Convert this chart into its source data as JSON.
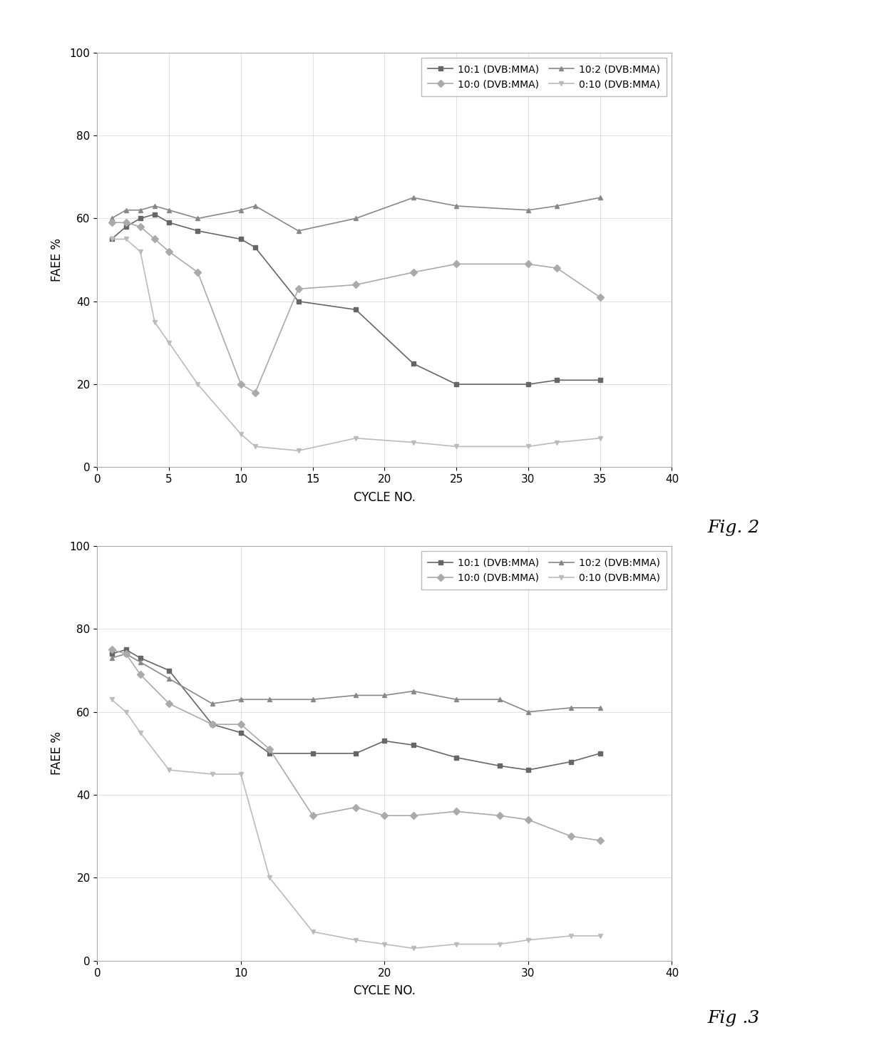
{
  "fig2": {
    "series": [
      {
        "label": "10:1 (DVB:MMA)",
        "x": [
          1,
          2,
          3,
          4,
          5,
          7,
          10,
          11,
          14,
          18,
          22,
          25,
          30,
          32,
          35
        ],
        "y": [
          55,
          58,
          60,
          61,
          59,
          57,
          55,
          53,
          40,
          38,
          25,
          20,
          20,
          21,
          21
        ],
        "color": "#666666",
        "marker": "s",
        "linestyle": "-"
      },
      {
        "label": "10:2 (DVB:MMA)",
        "x": [
          1,
          2,
          3,
          4,
          5,
          7,
          10,
          11,
          14,
          18,
          22,
          25,
          30,
          32,
          35
        ],
        "y": [
          60,
          62,
          62,
          63,
          62,
          60,
          62,
          63,
          57,
          60,
          65,
          63,
          62,
          63,
          65
        ],
        "color": "#888888",
        "marker": "^",
        "linestyle": "-"
      },
      {
        "label": "10:0 (DVB:MMA)",
        "x": [
          1,
          2,
          3,
          4,
          5,
          7,
          10,
          11,
          14,
          18,
          22,
          25,
          30,
          32,
          35
        ],
        "y": [
          59,
          59,
          58,
          55,
          52,
          47,
          20,
          18,
          43,
          44,
          47,
          49,
          49,
          48,
          41
        ],
        "color": "#aaaaaa",
        "marker": "D",
        "linestyle": "-"
      },
      {
        "label": "0:10 (DVB:MMA)",
        "x": [
          1,
          2,
          3,
          4,
          5,
          7,
          10,
          11,
          14,
          18,
          22,
          25,
          30,
          32,
          35
        ],
        "y": [
          55,
          55,
          52,
          35,
          30,
          20,
          8,
          5,
          4,
          7,
          6,
          5,
          5,
          6,
          7
        ],
        "color": "#bbbbbb",
        "marker": "v",
        "linestyle": "-"
      }
    ],
    "xlabel": "CYCLE NO.",
    "ylabel": "FAEE %",
    "ylim": [
      0,
      100
    ],
    "xlim": [
      0,
      40
    ],
    "xticks": [
      0,
      5,
      10,
      15,
      20,
      25,
      30,
      35,
      40
    ],
    "yticks": [
      0,
      20,
      40,
      60,
      80,
      100
    ],
    "fig_label": "Fig. 2"
  },
  "fig3": {
    "series": [
      {
        "label": "10:1 (DVB:MMA)",
        "x": [
          1,
          2,
          3,
          5,
          8,
          10,
          12,
          15,
          18,
          20,
          22,
          25,
          28,
          30,
          33,
          35
        ],
        "y": [
          74,
          75,
          73,
          70,
          57,
          55,
          50,
          50,
          50,
          53,
          52,
          49,
          47,
          46,
          48,
          50
        ],
        "color": "#666666",
        "marker": "s",
        "linestyle": "-"
      },
      {
        "label": "10:2 (DVB:MMA)",
        "x": [
          1,
          2,
          3,
          5,
          8,
          10,
          12,
          15,
          18,
          20,
          22,
          25,
          28,
          30,
          33,
          35
        ],
        "y": [
          73,
          74,
          72,
          68,
          62,
          63,
          63,
          63,
          64,
          64,
          65,
          63,
          63,
          60,
          61,
          61
        ],
        "color": "#888888",
        "marker": "^",
        "linestyle": "-"
      },
      {
        "label": "10:0 (DVB:MMA)",
        "x": [
          1,
          2,
          3,
          5,
          8,
          10,
          12,
          15,
          18,
          20,
          22,
          25,
          28,
          30,
          33,
          35
        ],
        "y": [
          75,
          74,
          69,
          62,
          57,
          57,
          51,
          35,
          37,
          35,
          35,
          36,
          35,
          34,
          30,
          29
        ],
        "color": "#aaaaaa",
        "marker": "D",
        "linestyle": "-"
      },
      {
        "label": "0:10 (DVB:MMA)",
        "x": [
          1,
          2,
          3,
          5,
          8,
          10,
          12,
          15,
          18,
          20,
          22,
          25,
          28,
          30,
          33,
          35
        ],
        "y": [
          63,
          60,
          55,
          46,
          45,
          45,
          20,
          7,
          5,
          4,
          3,
          4,
          4,
          5,
          6,
          6
        ],
        "color": "#bbbbbb",
        "marker": "v",
        "linestyle": "-"
      }
    ],
    "xlabel": "CYCLE NO.",
    "ylabel": "FAEE %",
    "ylim": [
      0,
      100
    ],
    "xlim": [
      0,
      40
    ],
    "xticks": [
      0,
      10,
      20,
      30,
      40
    ],
    "yticks": [
      0,
      20,
      40,
      60,
      80,
      100
    ],
    "fig_label": "Fig .3"
  },
  "background_color": "#ffffff",
  "plot_bg_color": "#ffffff",
  "grid_color": "#cccccc",
  "font_size": 11,
  "marker_size": 5,
  "line_width": 1.2
}
